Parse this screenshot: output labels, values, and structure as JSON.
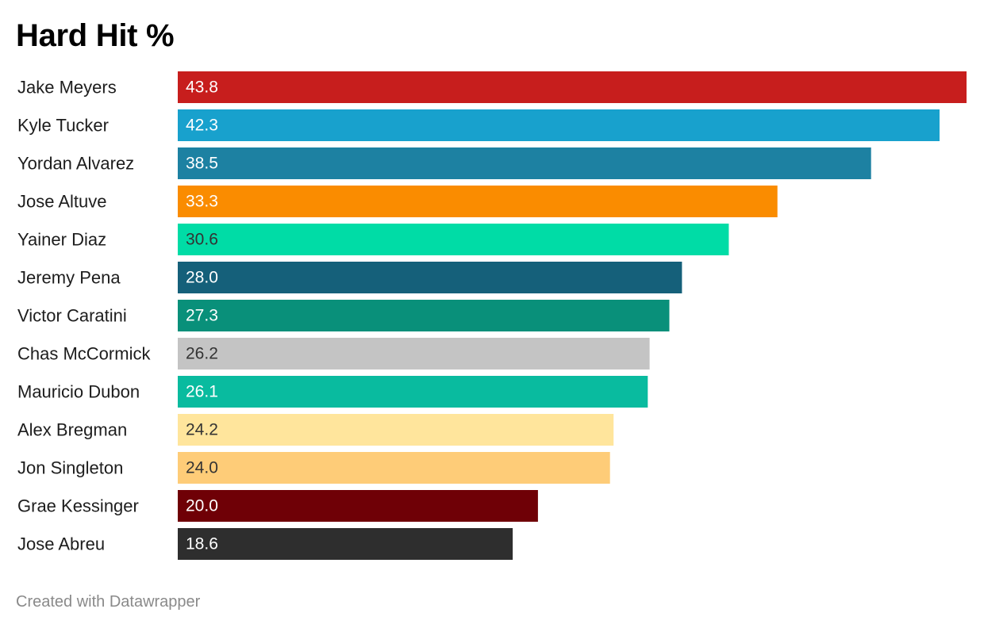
{
  "chart_data": {
    "type": "bar",
    "orientation": "horizontal",
    "title": "Hard Hit %",
    "categories": [
      "Jake Meyers",
      "Kyle Tucker",
      "Yordan Alvarez",
      "Jose Altuve",
      "Yainer Diaz",
      "Jeremy Pena",
      "Victor Caratini",
      "Chas McCormick",
      "Mauricio Dubon",
      "Alex Bregman",
      "Jon Singleton",
      "Grae Kessinger",
      "Jose Abreu"
    ],
    "values": [
      43.8,
      42.3,
      38.5,
      33.3,
      30.6,
      28.0,
      27.3,
      26.2,
      26.1,
      24.2,
      24.0,
      20.0,
      18.6
    ],
    "value_labels": [
      "43.8",
      "42.3",
      "38.5",
      "33.3",
      "30.6",
      "28.0",
      "27.3",
      "26.2",
      "26.1",
      "24.2",
      "24.0",
      "20.0",
      "18.6"
    ],
    "colors": [
      "#c71e1d",
      "#18a1cd",
      "#1d81a2",
      "#fa8c00",
      "#00dca6",
      "#15607a",
      "#09907a",
      "#c4c4c4",
      "#09bb9f",
      "#ffe59c",
      "#fecc78",
      "#6f0006",
      "#2e2e2e"
    ],
    "label_colors": [
      "#ffffff",
      "#ffffff",
      "#ffffff",
      "#ffffff",
      "#333333",
      "#ffffff",
      "#ffffff",
      "#333333",
      "#ffffff",
      "#333333",
      "#333333",
      "#ffffff",
      "#ffffff"
    ],
    "xlim": [
      0,
      43.8
    ],
    "grid": false,
    "legend": "none"
  },
  "footer": {
    "credit": "Created with Datawrapper"
  }
}
